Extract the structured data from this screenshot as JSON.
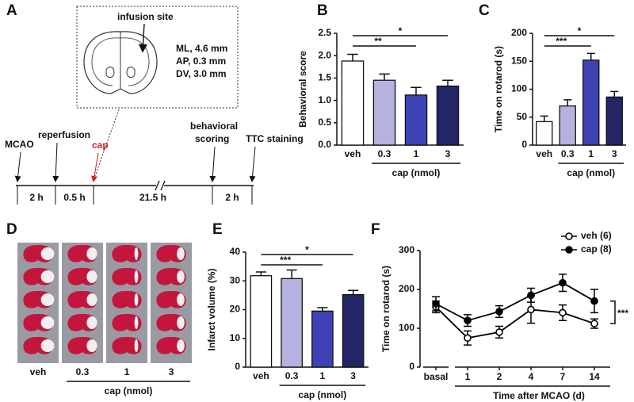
{
  "panel_a": {
    "letter": "A",
    "infusion_label": "infusion site",
    "coordinates": [
      "ML, 4.6 mm",
      "AP, 0.3 mm",
      "DV, 3.0 mm"
    ],
    "events": [
      "MCAO",
      "reperfusion",
      "cap",
      "behavioral",
      "scoring",
      "TTC staining"
    ],
    "intervals": [
      "2 h",
      "0.5 h",
      "21.5 h",
      "2 h"
    ]
  },
  "panel_d": {
    "letter": "D",
    "categories": [
      "veh",
      "0.3",
      "1",
      "3"
    ],
    "group_label": "cap (nmol)"
  },
  "chart_data": [
    {
      "type": "bar",
      "panel": "B",
      "ylabel": "Behavioral score",
      "categories": [
        "veh",
        "0.3",
        "1",
        "3"
      ],
      "group_label": "cap (nmol)",
      "values": [
        1.88,
        1.45,
        1.12,
        1.32
      ],
      "errors": [
        0.15,
        0.14,
        0.17,
        0.13
      ],
      "colors": [
        "#ffffff",
        "#b4b2de",
        "#3f42b5",
        "#232566"
      ],
      "ylim": [
        0,
        2.5
      ],
      "yticks": [
        {
          "value": 0,
          "label": "0.0"
        },
        0.5,
        {
          "value": 1,
          "label": "1.0"
        },
        1.5,
        {
          "value": 2,
          "label": "2.0"
        },
        2.5
      ],
      "significance": [
        "**",
        "*"
      ]
    },
    {
      "type": "bar",
      "panel": "C",
      "ylabel": "Time on rotarod (s)",
      "categories": [
        "veh",
        "0.3",
        "1",
        "3"
      ],
      "group_label": "cap (nmol)",
      "values": [
        42,
        70,
        152,
        86
      ],
      "errors": [
        10,
        11,
        12,
        10
      ],
      "colors": [
        "#ffffff",
        "#b4b2de",
        "#3f42b5",
        "#232566"
      ],
      "ylim": [
        0,
        200
      ],
      "yticks": [
        0,
        50,
        100,
        150,
        200
      ],
      "significance": [
        "***",
        "*"
      ]
    },
    {
      "type": "bar",
      "panel": "E",
      "ylabel": "Infarct volume (%)",
      "categories": [
        "veh",
        "0.3",
        "1",
        "3"
      ],
      "group_label": "cap (nmol)",
      "values": [
        31.8,
        30.8,
        19.5,
        25.2
      ],
      "errors": [
        1.3,
        3.0,
        1.2,
        1.5
      ],
      "colors": [
        "#ffffff",
        "#b4b2de",
        "#3f42b5",
        "#232566"
      ],
      "ylim": [
        0,
        40
      ],
      "yticks": [
        0,
        10,
        20,
        30,
        40
      ],
      "significance": [
        "***",
        "*"
      ]
    },
    {
      "type": "line",
      "panel": "F",
      "ylabel": "Time on rotarod (s)",
      "xlabel": "Time after MCAO (d)",
      "categories": [
        "basal",
        "1",
        "2",
        "4",
        "7",
        "14"
      ],
      "series": [
        {
          "name": "veh (6)",
          "color": "#000000",
          "marker": "open",
          "values": [
            155,
            75,
            90,
            148,
            140,
            112
          ],
          "errors": [
            15,
            18,
            15,
            35,
            20,
            12
          ]
        },
        {
          "name": "cap (8)",
          "color": "#000000",
          "marker": "filled",
          "values": [
            163,
            120,
            143,
            185,
            217,
            170
          ],
          "errors": [
            18,
            15,
            15,
            18,
            22,
            30
          ]
        }
      ],
      "ylim": [
        0,
        300
      ],
      "yticks": [
        0,
        100,
        200,
        300
      ],
      "significance": [
        "***"
      ]
    }
  ]
}
